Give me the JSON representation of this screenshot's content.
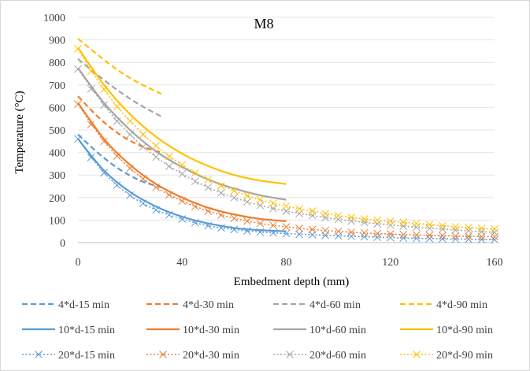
{
  "chart_data": {
    "type": "line",
    "title": "M8",
    "xlabel": "Embedment depth (mm)",
    "ylabel": "Temperature (°C)",
    "xlim": [
      0,
      160
    ],
    "ylim": [
      0,
      1000
    ],
    "x_ticks": [
      "0",
      "40",
      "80",
      "120",
      "160"
    ],
    "y_ticks": [
      "0",
      "100",
      "200",
      "300",
      "400",
      "500",
      "600",
      "700",
      "800",
      "900",
      "1000"
    ],
    "grid": "horizontal",
    "legend_position": "bottom",
    "colors": {
      "15": "#5b9bd5",
      "30": "#ed7d31",
      "60": "#a5a5a5",
      "90": "#ffc000"
    },
    "series": [
      {
        "name": "4*d-15 min",
        "style": "dashed",
        "color": "#5b9bd5",
        "x": [
          0,
          8,
          16,
          24,
          32
        ],
        "y": [
          480,
          395,
          325,
          275,
          245
        ]
      },
      {
        "name": "4*d-30 min",
        "style": "dashed",
        "color": "#ed7d31",
        "x": [
          0,
          8,
          16,
          24,
          32
        ],
        "y": [
          650,
          555,
          480,
          430,
          400
        ]
      },
      {
        "name": "4*d-60 min",
        "style": "dashed",
        "color": "#a5a5a5",
        "x": [
          0,
          8,
          16,
          24,
          32
        ],
        "y": [
          815,
          740,
          670,
          610,
          560
        ]
      },
      {
        "name": "4*d-90 min",
        "style": "dashed",
        "color": "#ffc000",
        "x": [
          0,
          8,
          16,
          24,
          32
        ],
        "y": [
          905,
          830,
          760,
          705,
          660
        ]
      },
      {
        "name": "10*d-15 min",
        "style": "solid",
        "color": "#5b9bd5",
        "x": [
          0,
          10,
          20,
          30,
          40,
          50,
          60,
          70,
          80
        ],
        "y": [
          460,
          320,
          225,
          160,
          115,
          85,
          65,
          55,
          50
        ]
      },
      {
        "name": "10*d-30 min",
        "style": "solid",
        "color": "#ed7d31",
        "x": [
          0,
          10,
          20,
          30,
          40,
          50,
          60,
          70,
          80
        ],
        "y": [
          620,
          460,
          345,
          260,
          200,
          155,
          125,
          105,
          95
        ]
      },
      {
        "name": "10*d-60 min",
        "style": "solid",
        "color": "#a5a5a5",
        "x": [
          0,
          10,
          20,
          30,
          40,
          50,
          60,
          70,
          80
        ],
        "y": [
          775,
          620,
          500,
          405,
          335,
          280,
          240,
          210,
          190
        ]
      },
      {
        "name": "10*d-90 min",
        "style": "solid",
        "color": "#ffc000",
        "x": [
          0,
          10,
          20,
          30,
          40,
          50,
          60,
          70,
          80
        ],
        "y": [
          865,
          700,
          570,
          470,
          395,
          340,
          300,
          275,
          260
        ]
      },
      {
        "name": "20*d-15 min",
        "style": "dotted-x",
        "color": "#5b9bd5",
        "x": [
          0,
          10,
          20,
          30,
          40,
          50,
          60,
          70,
          80,
          90,
          100,
          110,
          120,
          130,
          140,
          150,
          160
        ],
        "y": [
          460,
          310,
          210,
          145,
          105,
          75,
          58,
          47,
          40,
          35,
          30,
          26,
          22,
          19,
          17,
          15,
          13
        ]
      },
      {
        "name": "20*d-30 min",
        "style": "dotted-x",
        "color": "#ed7d31",
        "x": [
          0,
          10,
          20,
          30,
          40,
          50,
          60,
          70,
          80,
          90,
          100,
          110,
          120,
          130,
          140,
          150,
          160
        ],
        "y": [
          615,
          450,
          330,
          245,
          185,
          140,
          108,
          85,
          70,
          58,
          50,
          43,
          38,
          34,
          31,
          28,
          26
        ]
      },
      {
        "name": "20*d-60 min",
        "style": "dotted-x",
        "color": "#a5a5a5",
        "x": [
          0,
          10,
          20,
          30,
          40,
          50,
          60,
          70,
          80,
          90,
          100,
          110,
          120,
          130,
          140,
          150,
          160
        ],
        "y": [
          770,
          610,
          480,
          380,
          305,
          245,
          200,
          165,
          140,
          120,
          103,
          90,
          78,
          68,
          60,
          52,
          45
        ]
      },
      {
        "name": "20*d-90 min",
        "style": "dotted-x",
        "color": "#ffc000",
        "x": [
          0,
          10,
          20,
          30,
          40,
          50,
          60,
          70,
          80,
          90,
          100,
          110,
          120,
          130,
          140,
          150,
          160
        ],
        "y": [
          860,
          680,
          540,
          430,
          345,
          280,
          230,
          190,
          162,
          140,
          120,
          105,
          95,
          85,
          75,
          67,
          60
        ]
      }
    ]
  }
}
